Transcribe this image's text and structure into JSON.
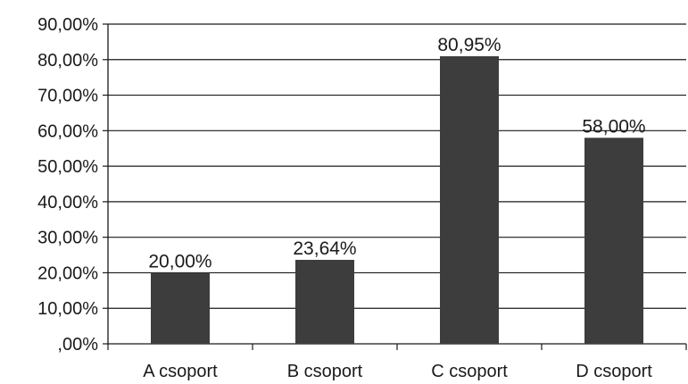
{
  "chart_data": {
    "type": "bar",
    "title": "",
    "xlabel": "",
    "ylabel": "",
    "categories": [
      "A csoport",
      "B csoport",
      "C csoport",
      "D csoport"
    ],
    "values": [
      20.0,
      23.64,
      80.95,
      58.0
    ],
    "value_labels": [
      "20,00%",
      "23,64%",
      "80,95%",
      "58,00%"
    ],
    "ylim": [
      0,
      90
    ],
    "yticks": [
      0,
      10,
      20,
      30,
      40,
      50,
      60,
      70,
      80,
      90
    ],
    "ytick_labels": [
      ",00%",
      "10,00%",
      "20,00%",
      "30,00%",
      "40,00%",
      "50,00%",
      "60,00%",
      "70,00%",
      "80,00%",
      "90,00%"
    ],
    "grid": "horizontal",
    "legend": "none",
    "bar_color": "#3d3d3d",
    "grid_color": "#1a1a1a"
  }
}
